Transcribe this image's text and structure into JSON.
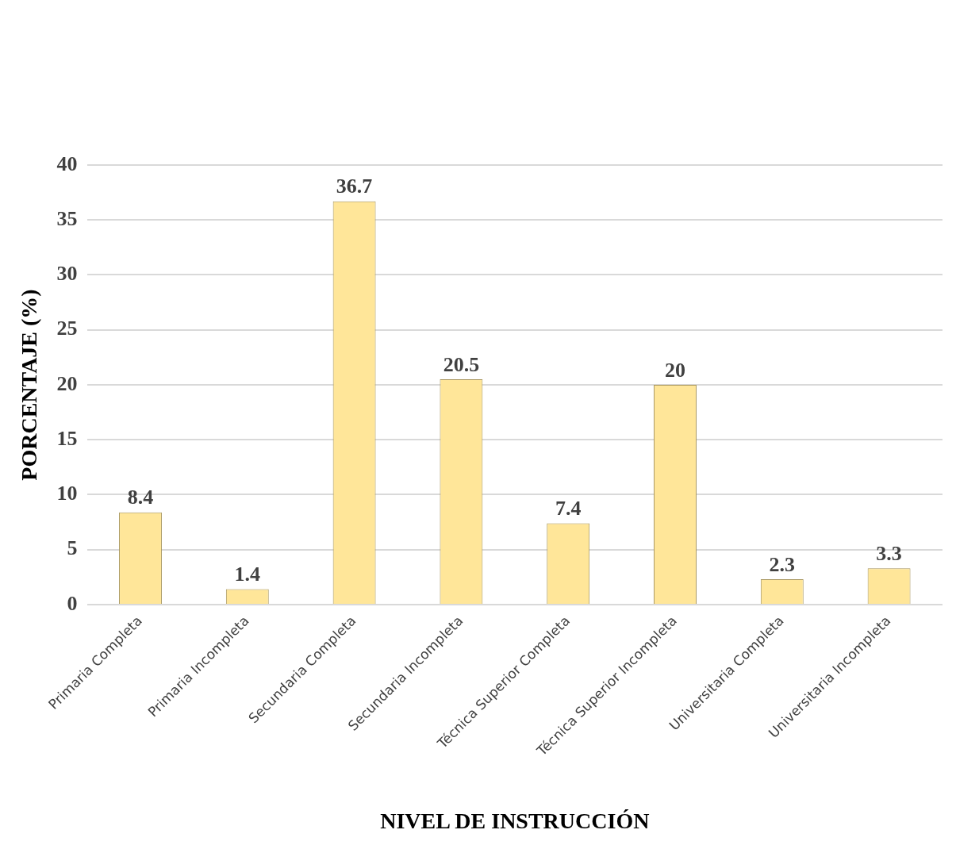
{
  "chart_data": {
    "type": "bar",
    "xlabel": "NIVEL DE INSTRUCCIÓN",
    "ylabel": "PORCENTAJE (%)",
    "categories": [
      "Primaria Completa",
      "Primaria Incompleta",
      "Secundaria Completa",
      "Secundaria Incompleta",
      "Técnica Superior Completa",
      "Técnica Superior Incompleta",
      "Universitaria Completa",
      "Universitaria Incompleta"
    ],
    "values": [
      8.4,
      1.4,
      36.7,
      20.5,
      7.4,
      20,
      2.3,
      3.3
    ],
    "color": "#ffe699",
    "ylim": [
      0,
      40
    ],
    "yticks": [
      0,
      5,
      10,
      15,
      20,
      25,
      30,
      35,
      40
    ],
    "grid": "y",
    "data_labels": true,
    "legend": false
  }
}
